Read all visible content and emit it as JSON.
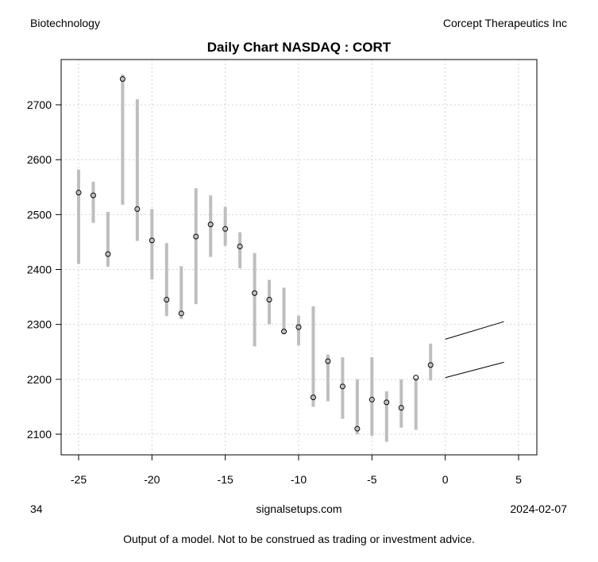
{
  "header": {
    "sector": "Biotechnology",
    "company": "Corcept Therapeutics Inc"
  },
  "footer": {
    "left": "34",
    "center": "signalsetups.com",
    "right": "2024-02-07",
    "disclaimer": "Output of a model. Not to be construed as trading or investment advice."
  },
  "chart_data": {
    "type": "line",
    "title": "Daily Chart NASDAQ : CORT",
    "xlabel": "",
    "ylabel": "",
    "xlim": [
      -26.2,
      6.2
    ],
    "ylim": [
      2070,
      2790
    ],
    "xticks": [
      -25,
      -20,
      -15,
      -10,
      -5,
      0,
      5
    ],
    "yticks": [
      2100,
      2200,
      2300,
      2400,
      2500,
      2600,
      2700
    ],
    "grid": true,
    "colors": {
      "range": "#bebebe",
      "forecast": "#000000",
      "grid": "#d3d3d3"
    },
    "bars": [
      {
        "x": -25,
        "close": 2540,
        "high": 2582,
        "low": 2410
      },
      {
        "x": -24,
        "close": 2535,
        "high": 2560,
        "low": 2485
      },
      {
        "x": -23,
        "close": 2428,
        "high": 2505,
        "low": 2405
      },
      {
        "x": -22,
        "close": 2747,
        "high": 2755,
        "low": 2518
      },
      {
        "x": -21,
        "close": 2510,
        "high": 2710,
        "low": 2452
      },
      {
        "x": -20,
        "close": 2453,
        "high": 2510,
        "low": 2382
      },
      {
        "x": -19,
        "close": 2345,
        "high": 2448,
        "low": 2315
      },
      {
        "x": -18,
        "close": 2320,
        "high": 2406,
        "low": 2310
      },
      {
        "x": -17,
        "close": 2460,
        "high": 2548,
        "low": 2337
      },
      {
        "x": -16,
        "close": 2482,
        "high": 2535,
        "low": 2423
      },
      {
        "x": -15,
        "close": 2474,
        "high": 2514,
        "low": 2443
      },
      {
        "x": -14,
        "close": 2442,
        "high": 2468,
        "low": 2402
      },
      {
        "x": -13,
        "close": 2357,
        "high": 2430,
        "low": 2260
      },
      {
        "x": -12,
        "close": 2345,
        "high": 2381,
        "low": 2300
      },
      {
        "x": -11,
        "close": 2287,
        "high": 2367,
        "low": 2283
      },
      {
        "x": -10,
        "close": 2295,
        "high": 2316,
        "low": 2262
      },
      {
        "x": -9,
        "close": 2167,
        "high": 2333,
        "low": 2150
      },
      {
        "x": -8,
        "close": 2233,
        "high": 2245,
        "low": 2160
      },
      {
        "x": -7,
        "close": 2187,
        "high": 2240,
        "low": 2128
      },
      {
        "x": -6,
        "close": 2110,
        "high": 2200,
        "low": 2100
      },
      {
        "x": -5,
        "close": 2163,
        "high": 2240,
        "low": 2097
      },
      {
        "x": -4,
        "close": 2158,
        "high": 2178,
        "low": 2086
      },
      {
        "x": -3,
        "close": 2148,
        "high": 2200,
        "low": 2112
      },
      {
        "x": -2,
        "close": 2203,
        "high": 2203,
        "low": 2108
      },
      {
        "x": -1,
        "close": 2226,
        "high": 2265,
        "low": 2198
      }
    ],
    "forecast": [
      {
        "name": "upper",
        "x": [
          0,
          4
        ],
        "y": [
          2273,
          2305
        ]
      },
      {
        "name": "lower",
        "x": [
          0,
          4
        ],
        "y": [
          2203,
          2231
        ]
      }
    ]
  }
}
